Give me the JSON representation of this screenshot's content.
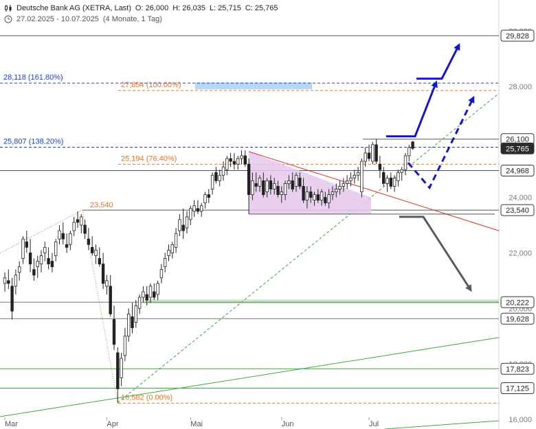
{
  "header": {
    "title": "Deutsche Bank AG (XETRA, Last)",
    "open": "O: 26,000",
    "high": "H: 26,035",
    "low": "L: 25,715",
    "close": "C: 25,765",
    "date_range": "27.02.2025 - 10.07.2025",
    "period": "(4 Monate, 1 Tag)"
  },
  "colors": {
    "candle": "#222222",
    "fib_blue": "#1a3fd0",
    "fib_orange": "#e8742a",
    "trend_red": "#e03030",
    "trend_green": "#3aa83a",
    "triangle_fill": "#e6c8ec",
    "arrow_blue": "#1414d2",
    "arrow_gray": "#5a5a5a",
    "zone_blue": "#aed4f5",
    "zone_green": "#bfe6bf"
  },
  "chart_data": {
    "type": "candlestick",
    "title": "Deutsche Bank AG (XETRA, Last)",
    "ylim": [
      15.85,
      30.2
    ],
    "y_ticks": [
      {
        "value": 16,
        "label": "16,000"
      },
      {
        "value": 18,
        "label": "18,000"
      },
      {
        "value": 20,
        "label": "20,000"
      },
      {
        "value": 22,
        "label": "22,000"
      },
      {
        "value": 24,
        "label": "24,000"
      },
      {
        "value": 26,
        "label": "26,000"
      },
      {
        "value": 28,
        "label": "28,000"
      },
      {
        "value": 30,
        "label": "30,000"
      }
    ],
    "x_labels": [
      "Mar",
      "Apr",
      "Mai",
      "Jun",
      "Jul"
    ],
    "price_labels": [
      {
        "value": 29.828,
        "label": "29,828",
        "style": "box"
      },
      {
        "value": 26.1,
        "label": "26,100",
        "style": "box"
      },
      {
        "value": 25.765,
        "label": "25,765",
        "style": "current"
      },
      {
        "value": 24.968,
        "label": "24,968",
        "style": "box"
      },
      {
        "value": 23.54,
        "label": "23,540",
        "style": "box"
      },
      {
        "value": 20.222,
        "label": "20,222",
        "style": "box"
      },
      {
        "value": 19.628,
        "label": "19,628",
        "style": "box"
      },
      {
        "value": 17.823,
        "label": "17,823",
        "style": "box"
      },
      {
        "value": 17.125,
        "label": "17,125",
        "style": "box"
      }
    ],
    "fib_levels": [
      {
        "value": 28.118,
        "label": "28,118 (161.80%)",
        "color": "blue"
      },
      {
        "value": 25.807,
        "label": "25,807 (138.20%)",
        "color": "blue"
      },
      {
        "value": 27.854,
        "label": "27,854 (100.00%)",
        "color": "orange"
      },
      {
        "value": 25.194,
        "label": "25,194 (76.40%)",
        "color": "orange"
      },
      {
        "value": 16.582,
        "label": "16,582 (0.00%)",
        "color": "orange"
      }
    ],
    "annotations": [
      {
        "label": "23,540",
        "value": 23.54
      }
    ],
    "candles": [
      {
        "o": 20.9,
        "h": 21.3,
        "l": 20.6,
        "c": 21.1
      },
      {
        "o": 21.0,
        "h": 21.4,
        "l": 20.7,
        "c": 20.9
      },
      {
        "o": 20.8,
        "h": 21.1,
        "l": 19.6,
        "c": 19.9
      },
      {
        "o": 20.8,
        "h": 21.4,
        "l": 20.5,
        "c": 21.2
      },
      {
        "o": 21.3,
        "h": 21.7,
        "l": 21.0,
        "c": 21.5
      },
      {
        "o": 21.8,
        "h": 22.6,
        "l": 21.6,
        "c": 22.5
      },
      {
        "o": 22.4,
        "h": 22.8,
        "l": 22.0,
        "c": 22.2
      },
      {
        "o": 22.0,
        "h": 22.5,
        "l": 21.3,
        "c": 21.6
      },
      {
        "o": 21.4,
        "h": 21.8,
        "l": 21.0,
        "c": 21.2
      },
      {
        "o": 21.5,
        "h": 21.9,
        "l": 21.1,
        "c": 21.7
      },
      {
        "o": 21.6,
        "h": 22.1,
        "l": 21.3,
        "c": 21.9
      },
      {
        "o": 22.0,
        "h": 22.4,
        "l": 21.7,
        "c": 22.2
      },
      {
        "o": 21.8,
        "h": 22.2,
        "l": 21.4,
        "c": 21.6
      },
      {
        "o": 21.7,
        "h": 22.0,
        "l": 21.3,
        "c": 21.5
      },
      {
        "o": 21.9,
        "h": 22.5,
        "l": 21.7,
        "c": 22.4
      },
      {
        "o": 22.5,
        "h": 23.0,
        "l": 22.3,
        "c": 22.8
      },
      {
        "o": 22.7,
        "h": 23.1,
        "l": 22.3,
        "c": 22.5
      },
      {
        "o": 22.3,
        "h": 22.7,
        "l": 22.0,
        "c": 22.2
      },
      {
        "o": 22.3,
        "h": 22.8,
        "l": 22.1,
        "c": 22.7
      },
      {
        "o": 22.8,
        "h": 23.3,
        "l": 22.6,
        "c": 23.1
      },
      {
        "o": 23.2,
        "h": 23.5,
        "l": 22.9,
        "c": 23.1
      },
      {
        "o": 23.0,
        "h": 23.4,
        "l": 22.7,
        "c": 23.3
      },
      {
        "o": 23.0,
        "h": 23.2,
        "l": 22.5,
        "c": 22.7
      },
      {
        "o": 22.5,
        "h": 22.9,
        "l": 22.1,
        "c": 22.3
      },
      {
        "o": 22.2,
        "h": 22.6,
        "l": 21.9,
        "c": 22.0
      },
      {
        "o": 21.9,
        "h": 22.3,
        "l": 21.6,
        "c": 22.1
      },
      {
        "o": 21.8,
        "h": 22.2,
        "l": 21.5,
        "c": 21.6
      },
      {
        "o": 21.6,
        "h": 22.0,
        "l": 20.7,
        "c": 20.9
      },
      {
        "o": 20.8,
        "h": 21.2,
        "l": 20.5,
        "c": 21.0
      },
      {
        "o": 20.8,
        "h": 21.2,
        "l": 19.7,
        "c": 19.8
      },
      {
        "o": 19.6,
        "h": 20.1,
        "l": 18.5,
        "c": 18.7
      },
      {
        "o": 18.4,
        "h": 18.6,
        "l": 16.6,
        "c": 17.1
      },
      {
        "o": 17.5,
        "h": 18.4,
        "l": 17.2,
        "c": 18.2
      },
      {
        "o": 18.3,
        "h": 19.3,
        "l": 18.1,
        "c": 19.0
      },
      {
        "o": 19.0,
        "h": 20.0,
        "l": 18.8,
        "c": 19.8
      },
      {
        "o": 19.7,
        "h": 20.2,
        "l": 19.1,
        "c": 19.3
      },
      {
        "o": 19.5,
        "h": 20.3,
        "l": 19.3,
        "c": 20.1
      },
      {
        "o": 20.0,
        "h": 20.5,
        "l": 19.8,
        "c": 20.4
      },
      {
        "o": 20.4,
        "h": 20.8,
        "l": 20.2,
        "c": 20.6
      },
      {
        "o": 20.5,
        "h": 20.8,
        "l": 20.1,
        "c": 20.3
      },
      {
        "o": 20.4,
        "h": 20.9,
        "l": 20.2,
        "c": 20.8
      },
      {
        "o": 20.6,
        "h": 20.9,
        "l": 20.3,
        "c": 20.4
      },
      {
        "o": 20.5,
        "h": 21.0,
        "l": 20.3,
        "c": 20.9
      },
      {
        "o": 21.1,
        "h": 21.6,
        "l": 20.9,
        "c": 21.4
      },
      {
        "o": 21.5,
        "h": 22.0,
        "l": 21.3,
        "c": 21.8
      },
      {
        "o": 21.9,
        "h": 22.3,
        "l": 21.7,
        "c": 22.1
      },
      {
        "o": 22.0,
        "h": 22.4,
        "l": 21.8,
        "c": 22.3
      },
      {
        "o": 22.2,
        "h": 22.9,
        "l": 22.0,
        "c": 22.7
      },
      {
        "o": 22.8,
        "h": 23.4,
        "l": 22.6,
        "c": 23.2
      },
      {
        "o": 23.0,
        "h": 23.6,
        "l": 22.5,
        "c": 22.8
      },
      {
        "o": 22.9,
        "h": 23.5,
        "l": 22.7,
        "c": 23.3
      },
      {
        "o": 23.2,
        "h": 23.7,
        "l": 23.0,
        "c": 23.6
      },
      {
        "o": 23.5,
        "h": 23.9,
        "l": 23.3,
        "c": 23.7
      },
      {
        "o": 23.6,
        "h": 23.9,
        "l": 23.4,
        "c": 23.5
      },
      {
        "o": 23.5,
        "h": 23.8,
        "l": 23.3,
        "c": 23.7
      },
      {
        "o": 23.8,
        "h": 24.2,
        "l": 23.6,
        "c": 24.1
      },
      {
        "o": 24.1,
        "h": 24.3,
        "l": 23.8,
        "c": 24.0
      },
      {
        "o": 24.3,
        "h": 24.9,
        "l": 24.1,
        "c": 24.8
      },
      {
        "o": 24.9,
        "h": 25.1,
        "l": 24.5,
        "c": 24.6
      },
      {
        "o": 24.6,
        "h": 25.0,
        "l": 24.4,
        "c": 24.8
      },
      {
        "o": 24.8,
        "h": 25.3,
        "l": 24.6,
        "c": 25.1
      },
      {
        "o": 25.0,
        "h": 25.5,
        "l": 24.8,
        "c": 25.4
      },
      {
        "o": 25.4,
        "h": 25.6,
        "l": 25.1,
        "c": 25.3
      },
      {
        "o": 25.3,
        "h": 25.6,
        "l": 25.0,
        "c": 25.2
      },
      {
        "o": 25.2,
        "h": 25.5,
        "l": 25.0,
        "c": 25.4
      },
      {
        "o": 25.4,
        "h": 25.7,
        "l": 25.2,
        "c": 25.5
      },
      {
        "o": 25.5,
        "h": 25.7,
        "l": 25.1,
        "c": 25.2
      },
      {
        "o": 25.2,
        "h": 25.4,
        "l": 23.4,
        "c": 24.1
      },
      {
        "o": 24.1,
        "h": 24.9,
        "l": 23.9,
        "c": 24.6
      },
      {
        "o": 24.5,
        "h": 24.9,
        "l": 24.2,
        "c": 24.4
      },
      {
        "o": 24.4,
        "h": 24.8,
        "l": 24.2,
        "c": 24.7
      },
      {
        "o": 24.6,
        "h": 24.9,
        "l": 24.0,
        "c": 24.1
      },
      {
        "o": 24.2,
        "h": 24.7,
        "l": 24.0,
        "c": 24.6
      },
      {
        "o": 24.6,
        "h": 24.8,
        "l": 24.1,
        "c": 24.3
      },
      {
        "o": 24.3,
        "h": 24.7,
        "l": 24.1,
        "c": 24.5
      },
      {
        "o": 24.4,
        "h": 24.6,
        "l": 24.0,
        "c": 24.1
      },
      {
        "o": 24.1,
        "h": 24.4,
        "l": 23.8,
        "c": 24.2
      },
      {
        "o": 24.1,
        "h": 24.6,
        "l": 23.9,
        "c": 24.5
      },
      {
        "o": 24.5,
        "h": 24.8,
        "l": 24.3,
        "c": 24.6
      },
      {
        "o": 24.6,
        "h": 24.9,
        "l": 24.2,
        "c": 24.3
      },
      {
        "o": 24.4,
        "h": 24.9,
        "l": 24.2,
        "c": 24.8
      },
      {
        "o": 24.7,
        "h": 24.9,
        "l": 24.3,
        "c": 24.4
      },
      {
        "o": 24.4,
        "h": 24.7,
        "l": 23.8,
        "c": 23.9
      },
      {
        "o": 23.9,
        "h": 24.4,
        "l": 23.6,
        "c": 24.2
      },
      {
        "o": 24.2,
        "h": 24.4,
        "l": 23.8,
        "c": 24.0
      },
      {
        "o": 23.9,
        "h": 24.2,
        "l": 23.7,
        "c": 24.1
      },
      {
        "o": 24.1,
        "h": 24.3,
        "l": 23.8,
        "c": 23.9
      },
      {
        "o": 23.9,
        "h": 24.3,
        "l": 23.7,
        "c": 24.2
      },
      {
        "o": 24.0,
        "h": 24.2,
        "l": 23.7,
        "c": 23.8
      },
      {
        "o": 23.8,
        "h": 24.3,
        "l": 23.6,
        "c": 24.1
      },
      {
        "o": 24.1,
        "h": 24.4,
        "l": 23.9,
        "c": 24.2
      },
      {
        "o": 24.2,
        "h": 24.5,
        "l": 24.0,
        "c": 24.3
      },
      {
        "o": 24.3,
        "h": 24.6,
        "l": 24.1,
        "c": 24.4
      },
      {
        "o": 24.4,
        "h": 24.7,
        "l": 24.2,
        "c": 24.5
      },
      {
        "o": 24.5,
        "h": 24.8,
        "l": 24.3,
        "c": 24.6
      },
      {
        "o": 24.6,
        "h": 24.9,
        "l": 24.4,
        "c": 24.7
      },
      {
        "o": 24.7,
        "h": 25.0,
        "l": 24.5,
        "c": 24.8
      },
      {
        "o": 24.8,
        "h": 25.1,
        "l": 24.6,
        "c": 24.9
      },
      {
        "o": 24.2,
        "h": 25.4,
        "l": 24.0,
        "c": 25.3
      },
      {
        "o": 25.3,
        "h": 25.8,
        "l": 25.1,
        "c": 25.6
      },
      {
        "o": 25.6,
        "h": 25.9,
        "l": 25.3,
        "c": 25.4
      },
      {
        "o": 25.3,
        "h": 26.0,
        "l": 25.2,
        "c": 25.9
      },
      {
        "o": 25.9,
        "h": 26.1,
        "l": 25.2,
        "c": 25.3
      },
      {
        "o": 25.2,
        "h": 25.5,
        "l": 24.7,
        "c": 25.0
      },
      {
        "o": 24.9,
        "h": 25.1,
        "l": 24.4,
        "c": 24.5
      },
      {
        "o": 24.5,
        "h": 24.8,
        "l": 24.2,
        "c": 24.7
      },
      {
        "o": 24.7,
        "h": 24.9,
        "l": 24.3,
        "c": 24.4
      },
      {
        "o": 24.4,
        "h": 24.8,
        "l": 24.2,
        "c": 24.7
      },
      {
        "o": 24.6,
        "h": 25.0,
        "l": 24.4,
        "c": 24.9
      },
      {
        "o": 24.9,
        "h": 25.1,
        "l": 24.6,
        "c": 25.0
      },
      {
        "o": 25.0,
        "h": 25.6,
        "l": 24.8,
        "c": 25.5
      },
      {
        "o": 25.5,
        "h": 25.9,
        "l": 25.3,
        "c": 25.8
      },
      {
        "o": 26.0,
        "h": 26.035,
        "l": 25.715,
        "c": 25.765
      }
    ]
  }
}
